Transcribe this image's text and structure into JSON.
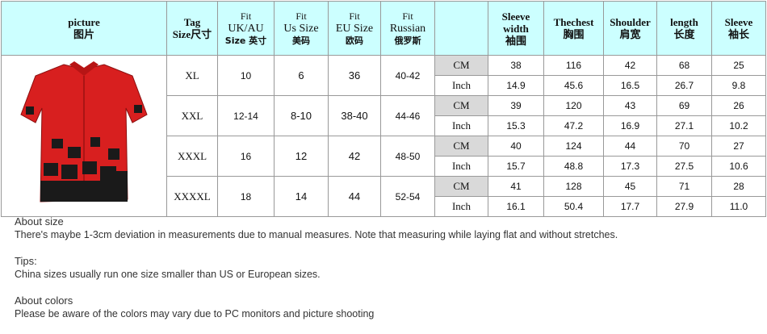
{
  "header": [
    [
      "picture",
      "图片"
    ],
    [
      "Tag",
      "Size尺寸"
    ],
    [
      "Fit",
      "UK/AU",
      "Size 英寸"
    ],
    [
      "Fit",
      "Us Size",
      "美码"
    ],
    [
      "Fit",
      "EU Size",
      "欧码"
    ],
    [
      "Fit",
      "Russian",
      "俄罗斯"
    ],
    [],
    [
      "Sleeve width",
      "袖围"
    ],
    [
      "Thechest",
      "胸围"
    ],
    [
      "Shoulder",
      "肩宽"
    ],
    [
      "length",
      "长度"
    ],
    [
      "Sleeve",
      "袖长"
    ]
  ],
  "units": [
    "CM",
    "Inch"
  ],
  "rows": [
    {
      "tag": "XL",
      "uk": "10",
      "us": "6",
      "eu": "36",
      "ru": "40-42",
      "cm": [
        "38",
        "116",
        "42",
        "68",
        "25"
      ],
      "inch": [
        "14.9",
        "45.6",
        "16.5",
        "26.7",
        "9.8"
      ]
    },
    {
      "tag": "XXL",
      "uk": "12-14",
      "us": "8-10",
      "eu": "38-40",
      "ru": "44-46",
      "cm": [
        "39",
        "120",
        "43",
        "69",
        "26"
      ],
      "inch": [
        "15.3",
        "47.2",
        "16.9",
        "27.1",
        "10.2"
      ]
    },
    {
      "tag": "XXXL",
      "uk": "16",
      "us": "12",
      "eu": "42",
      "ru": "48-50",
      "cm": [
        "40",
        "124",
        "44",
        "70",
        "27"
      ],
      "inch": [
        "15.7",
        "48.8",
        "17.3",
        "27.5",
        "10.6"
      ]
    },
    {
      "tag": "XXXXL",
      "uk": "18",
      "us": "14",
      "eu": "44",
      "ru": "52-54",
      "cm": [
        "41",
        "128",
        "45",
        "71",
        "28"
      ],
      "inch": [
        "16.1",
        "50.4",
        "17.7",
        "27.9",
        "11.0"
      ]
    }
  ],
  "notes": [
    {
      "heading": "About size",
      "text": "There's maybe 1-3cm deviation in measurements due to manual measures. Note that measuring while laying flat and without stretches."
    },
    {
      "heading": "Tips:",
      "text": "China sizes usually run one size smaller than US or European sizes."
    },
    {
      "heading": "About colors",
      "text": "Please be aware of the colors may vary due to PC monitors and picture shooting"
    }
  ]
}
